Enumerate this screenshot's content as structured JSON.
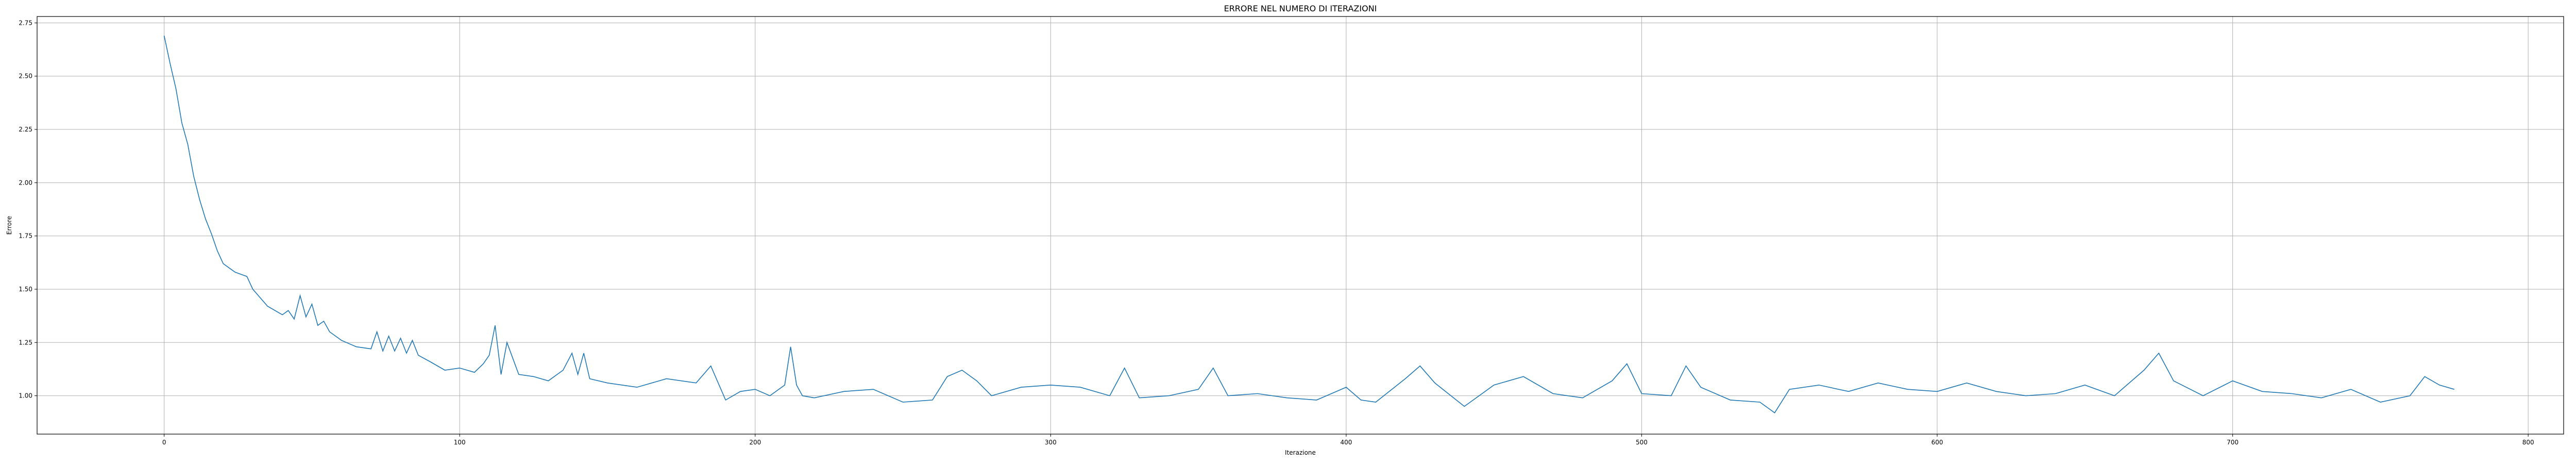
{
  "chart_data": {
    "type": "line",
    "title": "ERRORE NEL NUMERO DI ITERAZIONI",
    "xlabel": "Iterazione",
    "ylabel": "Errore",
    "xlim": [
      -43,
      812
    ],
    "ylim": [
      0.82,
      2.78
    ],
    "grid": true,
    "xticks": [
      0,
      100,
      200,
      300,
      400,
      500,
      600,
      700,
      800
    ],
    "xtick_labels": [
      "0",
      "100",
      "200",
      "300",
      "400",
      "500",
      "600",
      "700",
      "800"
    ],
    "yticks": [
      1.0,
      1.25,
      1.5,
      1.75,
      2.0,
      2.25,
      2.5,
      2.75
    ],
    "ytick_labels": [
      "1.00",
      "1.25",
      "1.50",
      "1.75",
      "2.00",
      "2.25",
      "2.50",
      "2.75"
    ],
    "series": [
      {
        "name": "",
        "color": "#1f77b4",
        "x": [
          0,
          2,
          4,
          6,
          8,
          10,
          12,
          14,
          16,
          18,
          20,
          22,
          24,
          26,
          28,
          30,
          35,
          40,
          42,
          44,
          46,
          48,
          50,
          52,
          54,
          56,
          60,
          65,
          70,
          72,
          74,
          76,
          78,
          80,
          82,
          84,
          86,
          90,
          95,
          100,
          105,
          108,
          110,
          112,
          114,
          116,
          120,
          125,
          130,
          135,
          138,
          140,
          142,
          144,
          150,
          160,
          170,
          180,
          185,
          190,
          195,
          200,
          205,
          210,
          212,
          214,
          216,
          220,
          230,
          240,
          250,
          260,
          265,
          270,
          275,
          280,
          290,
          300,
          310,
          320,
          325,
          330,
          340,
          350,
          355,
          360,
          370,
          380,
          390,
          400,
          405,
          410,
          420,
          425,
          430,
          440,
          450,
          460,
          470,
          480,
          490,
          495,
          500,
          510,
          515,
          520,
          530,
          540,
          545,
          550,
          560,
          570,
          580,
          590,
          600,
          610,
          620,
          630,
          640,
          650,
          660,
          670,
          675,
          680,
          690,
          700,
          710,
          720,
          730,
          740,
          750,
          760,
          765,
          770,
          775
        ],
        "y": [
          2.69,
          2.56,
          2.44,
          2.28,
          2.18,
          2.03,
          1.92,
          1.83,
          1.76,
          1.68,
          1.62,
          1.6,
          1.58,
          1.57,
          1.56,
          1.5,
          1.42,
          1.38,
          1.4,
          1.36,
          1.47,
          1.37,
          1.43,
          1.33,
          1.35,
          1.3,
          1.26,
          1.23,
          1.22,
          1.3,
          1.21,
          1.28,
          1.21,
          1.27,
          1.2,
          1.26,
          1.19,
          1.16,
          1.12,
          1.13,
          1.11,
          1.15,
          1.19,
          1.33,
          1.1,
          1.25,
          1.1,
          1.09,
          1.07,
          1.12,
          1.2,
          1.1,
          1.2,
          1.08,
          1.06,
          1.04,
          1.08,
          1.06,
          1.14,
          0.98,
          1.02,
          1.03,
          1.0,
          1.05,
          1.23,
          1.05,
          1.0,
          0.99,
          1.02,
          1.03,
          0.97,
          0.98,
          1.09,
          1.12,
          1.07,
          1.0,
          1.04,
          1.05,
          1.04,
          1.0,
          1.13,
          0.99,
          1.0,
          1.03,
          1.13,
          1.0,
          1.01,
          0.99,
          0.98,
          1.04,
          0.98,
          0.97,
          1.08,
          1.14,
          1.06,
          0.95,
          1.05,
          1.09,
          1.01,
          0.99,
          1.07,
          1.15,
          1.01,
          1.0,
          1.14,
          1.04,
          0.98,
          0.97,
          0.92,
          1.03,
          1.05,
          1.02,
          1.06,
          1.03,
          1.02,
          1.06,
          1.02,
          1.0,
          1.01,
          1.05,
          1.0,
          1.12,
          1.2,
          1.07,
          1.0,
          1.07,
          1.02,
          1.01,
          0.99,
          1.03,
          0.97,
          1.0,
          1.09,
          1.05,
          1.03
        ]
      }
    ]
  }
}
